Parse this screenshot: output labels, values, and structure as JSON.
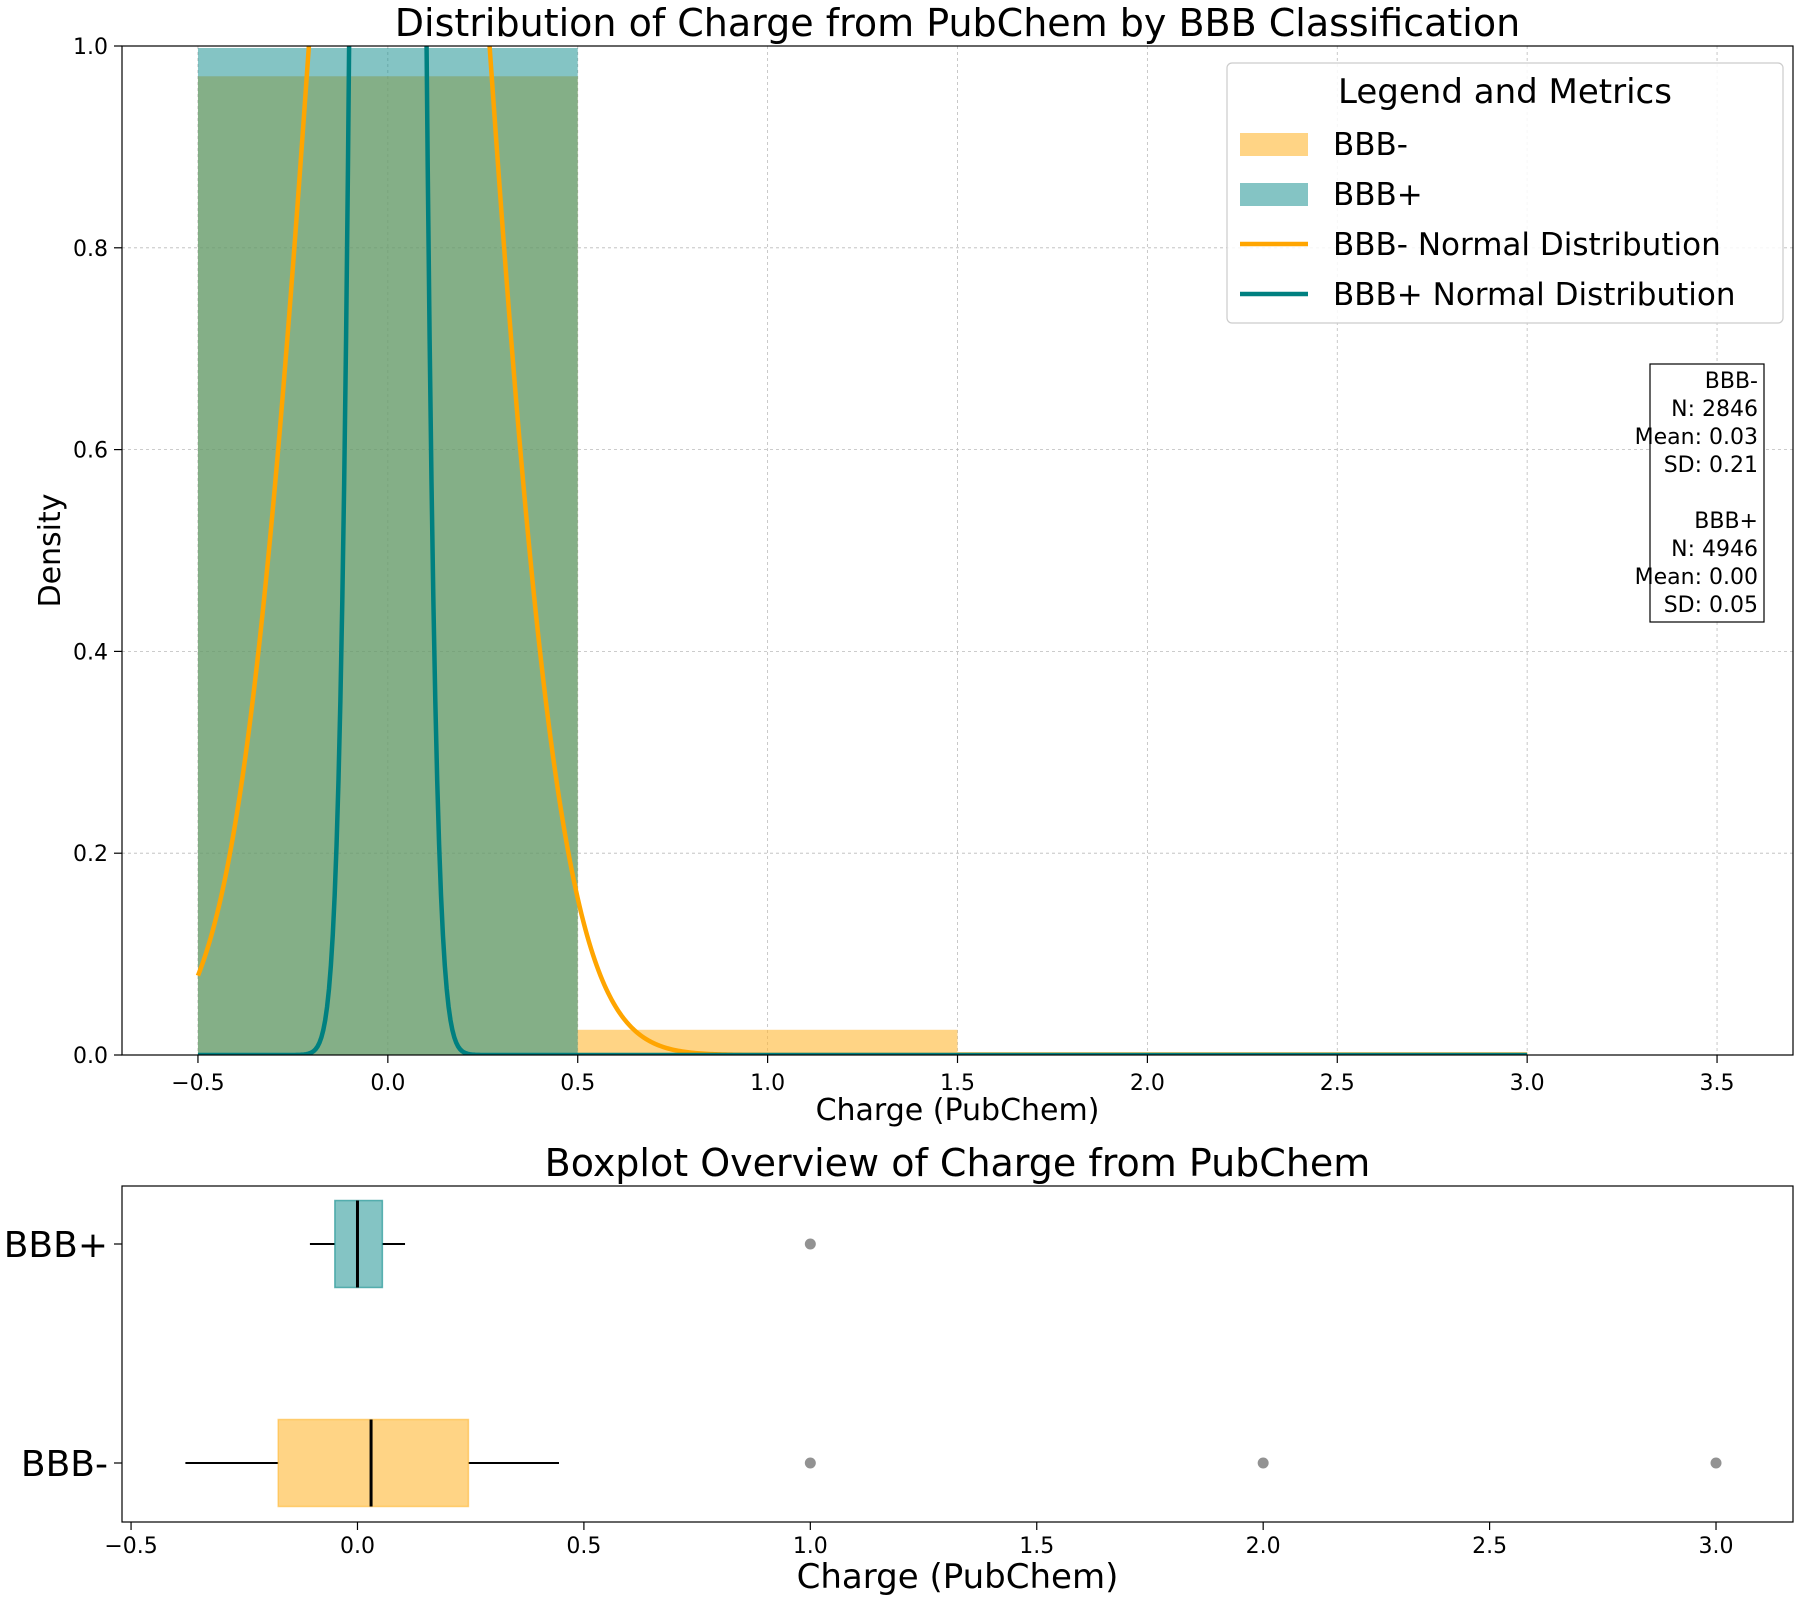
{
  "chart_data": [
    {
      "type": "bar",
      "title": "Distribution of Charge from PubChem by BBB Classification",
      "xlabel": "Charge (PubChem)",
      "ylabel": "Density",
      "xlim": [
        -0.7,
        3.7
      ],
      "ylim": [
        0,
        1.0
      ],
      "xticks": [
        -0.5,
        0.0,
        0.5,
        1.0,
        1.5,
        2.0,
        2.5,
        3.0,
        3.5
      ],
      "xtick_labels": [
        "−0.5",
        "0.0",
        "0.5",
        "1.0",
        "1.5",
        "2.0",
        "2.5",
        "3.0",
        "3.5"
      ],
      "yticks": [
        0.0,
        0.2,
        0.4,
        0.6,
        0.8,
        1.0
      ],
      "ytick_labels": [
        "0.0",
        "0.2",
        "0.4",
        "0.6",
        "0.8",
        "1.0"
      ],
      "grid": true,
      "legend": {
        "title": "Legend and Metrics",
        "placement": "top-right",
        "entries": [
          {
            "label": "BBB-",
            "kind": "patch",
            "color": "#FFB733"
          },
          {
            "label": "BBB+",
            "kind": "patch",
            "color": "#0A8A8A"
          },
          {
            "label": "BBB- Normal Distribution",
            "kind": "line",
            "color": "#FFA500"
          },
          {
            "label": "BBB+ Normal Distribution",
            "kind": "line",
            "color": "#008080"
          }
        ]
      },
      "metrics_box": {
        "lines": [
          "BBB-",
          "N: 2846",
          "Mean: 0.03",
          "SD: 0.21",
          "",
          "BBB+",
          "N: 4946",
          "Mean: 0.00",
          "SD: 0.05"
        ]
      },
      "series": [
        {
          "name": "BBB-",
          "kind": "histogram",
          "color": "#FFB733",
          "opacity": 0.6,
          "bins": [
            {
              "start": -0.5,
              "end": 0.5,
              "density": 0.97
            },
            {
              "start": 0.5,
              "end": 1.5,
              "density": 0.025
            },
            {
              "start": 1.5,
              "end": 3.0,
              "density": 0.003
            }
          ]
        },
        {
          "name": "BBB+",
          "kind": "histogram",
          "color": "#0A8A8A",
          "opacity": 0.5,
          "bins": [
            {
              "start": -0.5,
              "end": 0.5,
              "density": 0.998
            },
            {
              "start": 0.5,
              "end": 1.5,
              "density": 0.0
            }
          ]
        },
        {
          "name": "BBB- Normal Distribution",
          "kind": "normal_curve",
          "color": "#FFA500",
          "mean": 0.03,
          "sd": 0.21,
          "x_range": [
            -0.5,
            3.0
          ]
        },
        {
          "name": "BBB+ Normal Distribution",
          "kind": "normal_curve",
          "color": "#008080",
          "mean": 0.0,
          "sd": 0.05,
          "x_range": [
            -0.5,
            3.0
          ]
        }
      ]
    },
    {
      "type": "box",
      "title": "Boxplot Overview of Charge from PubChem",
      "xlabel": "Charge (PubChem)",
      "xlim": [
        -0.52,
        3.17
      ],
      "xticks": [
        -0.5,
        0.0,
        0.5,
        1.0,
        1.5,
        2.0,
        2.5,
        3.0
      ],
      "xtick_labels": [
        "−0.5",
        "0.0",
        "0.5",
        "1.0",
        "1.5",
        "2.0",
        "2.5",
        "3.0"
      ],
      "categories": [
        "BBB+",
        "BBB-"
      ],
      "boxes": [
        {
          "name": "BBB+",
          "color": "#0A8A8A",
          "whisker_low": -0.105,
          "q1": -0.05,
          "median": 0.0,
          "q3": 0.055,
          "whisker_high": 0.105,
          "outliers": [
            1.0
          ]
        },
        {
          "name": "BBB-",
          "color": "#FFB733",
          "whisker_low": -0.38,
          "q1": -0.175,
          "median": 0.03,
          "q3": 0.245,
          "whisker_high": 0.445,
          "outliers": [
            1.0,
            2.0,
            3.0
          ]
        }
      ]
    }
  ]
}
